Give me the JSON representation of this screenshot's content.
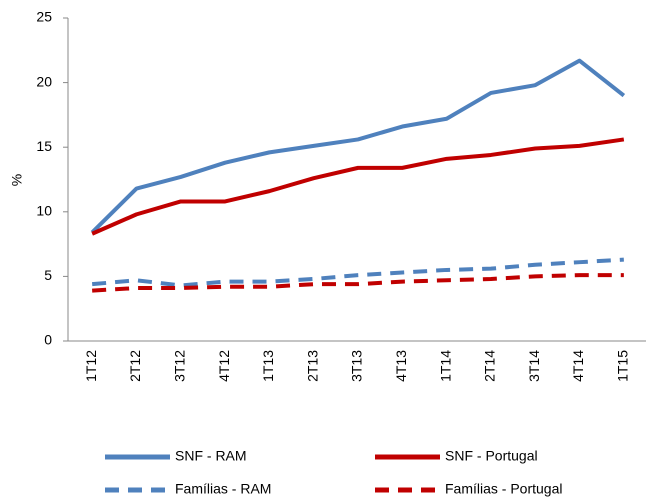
{
  "chart_data": {
    "type": "line",
    "y_label": "%",
    "categories": [
      "1T12",
      "2T12",
      "3T12",
      "4T12",
      "1T13",
      "2T13",
      "3T13",
      "4T13",
      "1T14",
      "2T14",
      "3T14",
      "4T14",
      "1T15"
    ],
    "series": [
      {
        "name": "SNF - RAM",
        "color": "#4f81bd",
        "dash": false,
        "values": [
          8.4,
          11.8,
          12.7,
          13.8,
          14.6,
          15.1,
          15.6,
          16.6,
          17.2,
          19.2,
          19.8,
          21.7,
          19.0
        ]
      },
      {
        "name": "SNF - Portugal",
        "color": "#c00000",
        "dash": false,
        "values": [
          8.3,
          9.8,
          10.8,
          10.8,
          11.6,
          12.6,
          13.4,
          13.4,
          14.1,
          14.4,
          14.9,
          15.1,
          15.6
        ]
      },
      {
        "name": "Famílias - RAM",
        "color": "#4f81bd",
        "dash": true,
        "values": [
          4.4,
          4.7,
          4.3,
          4.6,
          4.6,
          4.8,
          5.1,
          5.3,
          5.5,
          5.6,
          5.9,
          6.1,
          6.3
        ]
      },
      {
        "name": "Famílias - Portugal",
        "color": "#c00000",
        "dash": true,
        "values": [
          3.9,
          4.1,
          4.1,
          4.2,
          4.2,
          4.4,
          4.4,
          4.6,
          4.7,
          4.8,
          5.0,
          5.1,
          5.1
        ]
      }
    ],
    "ylim": [
      0,
      25
    ],
    "yticks": [
      0,
      5,
      10,
      15,
      20,
      25
    ],
    "grid": false
  }
}
